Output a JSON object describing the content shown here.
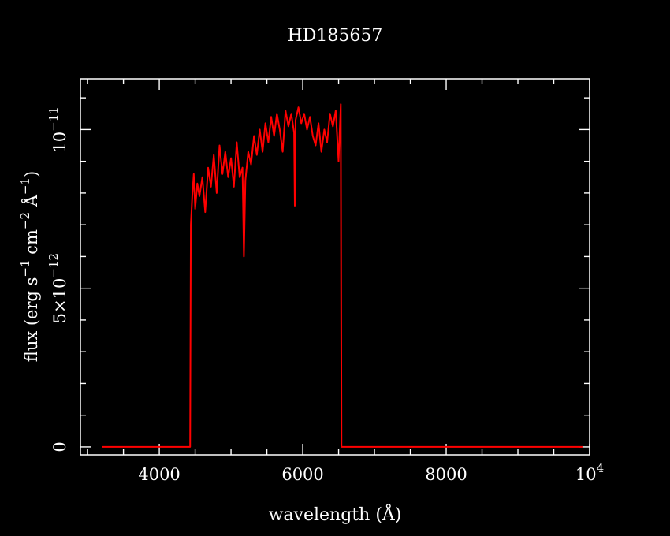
{
  "chart_data": {
    "type": "line",
    "title": "HD185657",
    "xlabel": {
      "parts": [
        {
          "t": "wavelength (Å)",
          "sup": false
        }
      ]
    },
    "ylabel": {
      "parts": [
        {
          "t": "flux (erg s",
          "sup": false
        },
        {
          "t": "−1",
          "sup": true
        },
        {
          "t": " cm",
          "sup": false
        },
        {
          "t": "−2",
          "sup": true
        },
        {
          "t": " Å",
          "sup": false
        },
        {
          "t": "−1",
          "sup": true
        },
        {
          "t": ")",
          "sup": false
        }
      ]
    },
    "xlim": [
      2900,
      10000
    ],
    "ylim": [
      -2.5e-13,
      1.16e-11
    ],
    "x_ticks_major": [
      {
        "value": 4000,
        "parts": [
          {
            "t": "4000",
            "sup": false
          }
        ]
      },
      {
        "value": 6000,
        "parts": [
          {
            "t": "6000",
            "sup": false
          }
        ]
      },
      {
        "value": 8000,
        "parts": [
          {
            "t": "8000",
            "sup": false
          }
        ]
      },
      {
        "value": 10000,
        "parts": [
          {
            "t": "10",
            "sup": false
          },
          {
            "t": "4",
            "sup": true
          }
        ]
      }
    ],
    "x_ticks_minor": [
      3000,
      3500,
      4500,
      5000,
      5500,
      6500,
      7000,
      7500,
      8500,
      9000,
      9500
    ],
    "y_ticks_major": [
      {
        "value": 0,
        "parts": [
          {
            "t": "0",
            "sup": false
          }
        ]
      },
      {
        "value": 5e-12,
        "parts": [
          {
            "t": "5×10",
            "sup": false
          },
          {
            "t": "−12",
            "sup": true
          }
        ]
      },
      {
        "value": 1e-11,
        "parts": [
          {
            "t": "10",
            "sup": false
          },
          {
            "t": "−11",
            "sup": true
          }
        ]
      }
    ],
    "y_ticks_minor": [
      1e-12,
      2e-12,
      3e-12,
      4e-12,
      6e-12,
      7e-12,
      8e-12,
      9e-12,
      1.1e-11
    ],
    "series": [
      {
        "color": "#ff0000",
        "x": [
          3200,
          4430,
          4440,
          4460,
          4480,
          4500,
          4530,
          4560,
          4600,
          4640,
          4680,
          4720,
          4760,
          4800,
          4840,
          4880,
          4920,
          4960,
          5000,
          5040,
          5080,
          5120,
          5160,
          5180,
          5200,
          5240,
          5280,
          5320,
          5360,
          5400,
          5440,
          5480,
          5520,
          5560,
          5600,
          5640,
          5680,
          5720,
          5760,
          5800,
          5840,
          5880,
          5890,
          5900,
          5940,
          5980,
          6020,
          6060,
          6100,
          6140,
          6180,
          6220,
          6260,
          6300,
          6340,
          6380,
          6420,
          6460,
          6500,
          6530,
          6540,
          9900
        ],
        "y": [
          0,
          0,
          7e-12,
          7.9e-12,
          8.6e-12,
          7.5e-12,
          8.3e-12,
          7.9e-12,
          8.5e-12,
          7.4e-12,
          8.8e-12,
          8.2e-12,
          9.2e-12,
          8e-12,
          9.5e-12,
          8.6e-12,
          9.3e-12,
          8.5e-12,
          9.1e-12,
          8.2e-12,
          9.6e-12,
          8.5e-12,
          8.8e-12,
          6e-12,
          8.4e-12,
          9.3e-12,
          8.9e-12,
          9.8e-12,
          9.2e-12,
          1e-11,
          9.3e-12,
          1.02e-11,
          9.6e-12,
          1.04e-11,
          9.8e-12,
          1.05e-11,
          1e-11,
          9.3e-12,
          1.06e-11,
          1.01e-11,
          1.05e-11,
          9.9e-12,
          7.6e-12,
          1.03e-11,
          1.07e-11,
          1.02e-11,
          1.05e-11,
          1e-11,
          1.04e-11,
          9.8e-12,
          9.5e-12,
          1.02e-11,
          9.3e-12,
          1e-11,
          9.6e-12,
          1.05e-11,
          1.01e-11,
          1.06e-11,
          9e-12,
          1.08e-11,
          0,
          0
        ]
      }
    ]
  }
}
